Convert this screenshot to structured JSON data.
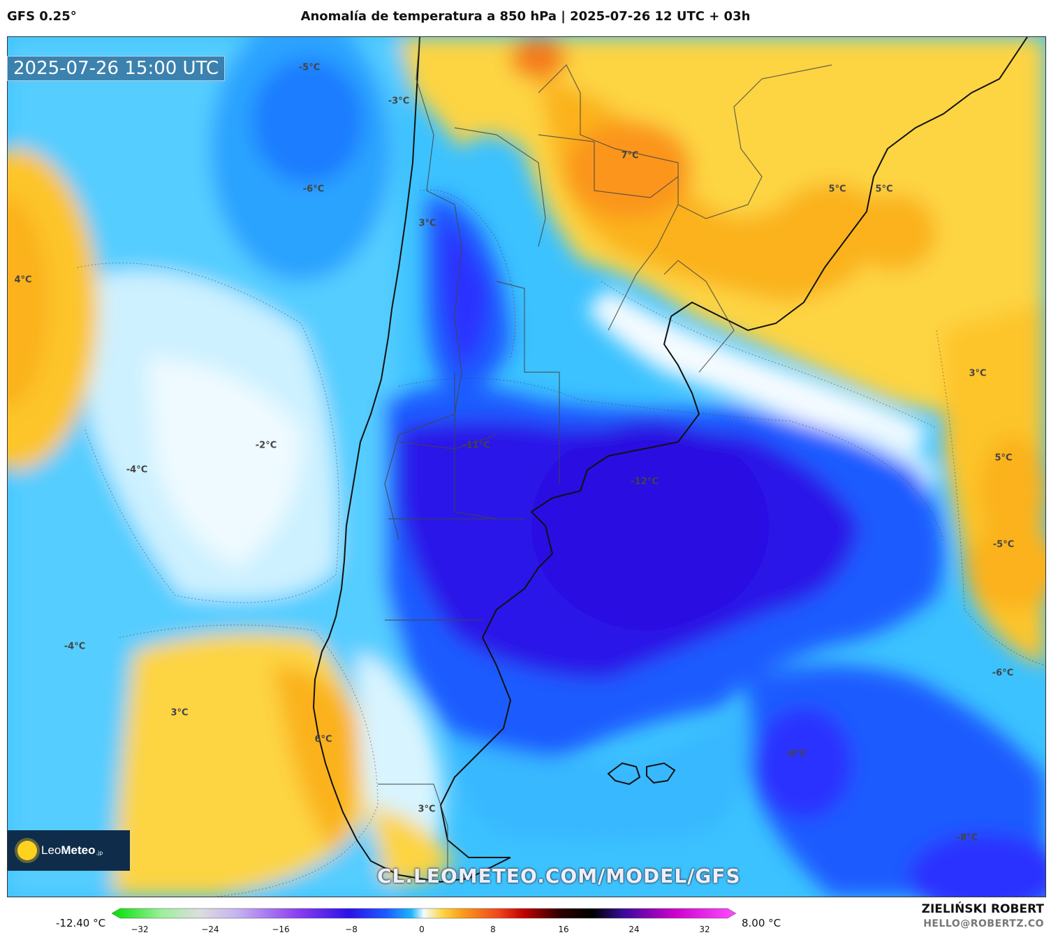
{
  "header": {
    "model": "GFS 0.25°",
    "title": "Anomalía de temperatura a 850 hPa | 2025-07-26 12 UTC + 03h"
  },
  "map": {
    "timestamp": "2025-07-26 15:00 UTC",
    "watermark": "CL.LEOMETEO.COM/MODEL/GFS",
    "labels": [
      {
        "text": "-5°C"
      },
      {
        "text": "-3°C"
      },
      {
        "text": "-6°C"
      },
      {
        "text": "3°C"
      },
      {
        "text": "4°C"
      },
      {
        "text": "7°C"
      },
      {
        "text": "5°C"
      },
      {
        "text": "5°C"
      },
      {
        "text": "3°C"
      },
      {
        "text": "5°C"
      },
      {
        "text": "-5°C"
      },
      {
        "text": "-11°C"
      },
      {
        "text": "-12°C"
      },
      {
        "text": "-2°C"
      },
      {
        "text": "-4°C"
      },
      {
        "text": "-4°C"
      },
      {
        "text": "3°C"
      },
      {
        "text": "6°C"
      },
      {
        "text": "3°C"
      },
      {
        "text": "-9°C"
      },
      {
        "text": "-6°C"
      },
      {
        "text": "-8°C"
      }
    ]
  },
  "logo": {
    "name_light": "Leo",
    "name_bold": "Meteo",
    "suffix": ".jp"
  },
  "colorbar": {
    "min_label": "-12.40 °C",
    "max_label": "8.00 °C",
    "ticks": [
      "−32",
      "−24",
      "−16",
      "−8",
      "0",
      "8",
      "16",
      "24",
      "32"
    ]
  },
  "credits": {
    "author": "ZIELIŃSKI ROBERT",
    "email": "HELLO@ROBERTZ.CO"
  },
  "colors": {
    "strong_cold": "#2a12e8",
    "cold": "#1e5cff",
    "cool": "#1ab6ff",
    "mild_cool": "#9fe6ff",
    "neutral": "#f4fbff",
    "mild_warm": "#fff0a8",
    "warm": "#fdc52a",
    "hot": "#fb9f1c"
  }
}
